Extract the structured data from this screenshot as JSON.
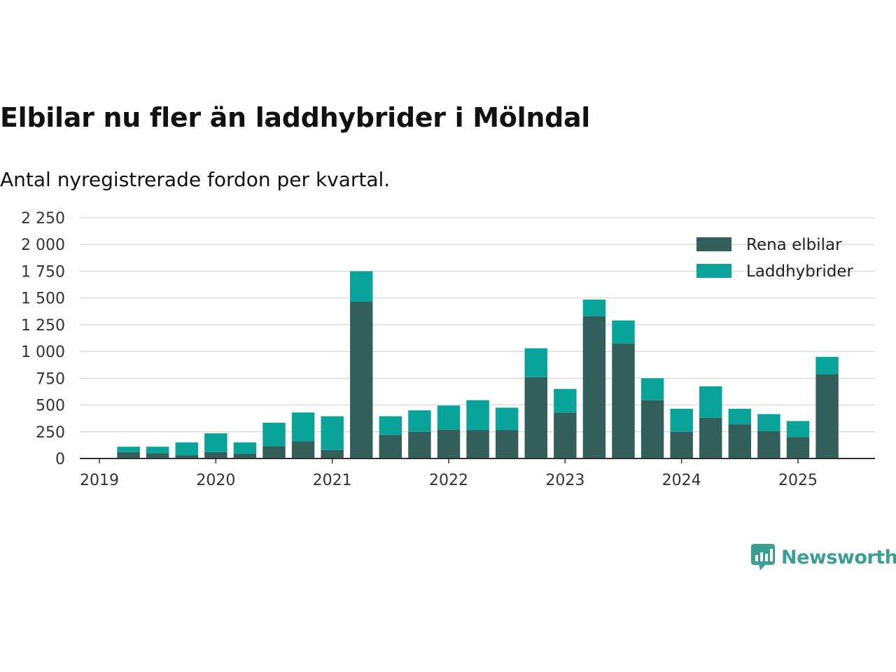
{
  "title": "Elbilar nu fler än laddhybrider i Mölndal",
  "subtitle": "Antal nyregistrerade fordon per kvartal.",
  "brand": {
    "name": "Newsworthy",
    "icon": "newsworthy-logo-icon",
    "color": "#3a9e93"
  },
  "colors": {
    "rena_elbilar": "#335f5a",
    "laddhybrider": "#0aa39a",
    "grid": "#dddddd",
    "axis": "#333333"
  },
  "chart_data": {
    "type": "bar",
    "stacked": true,
    "title": "Elbilar nu fler än laddhybrider i Mölndal",
    "subtitle": "Antal nyregistrerade fordon per kvartal.",
    "xlabel": "",
    "ylabel": "",
    "ylim": [
      0,
      2250
    ],
    "yticks": [
      0,
      250,
      500,
      750,
      1000,
      1250,
      1500,
      1750,
      2000,
      2250
    ],
    "ytick_labels": [
      "0",
      "250",
      "500",
      "750",
      "1 000",
      "1 250",
      "1 500",
      "1 750",
      "2 000",
      "2 250"
    ],
    "xtick_labels": [
      "2019",
      "2020",
      "2021",
      "2022",
      "2023",
      "2024",
      "2025"
    ],
    "grid": true,
    "legend_position": "top-right",
    "categories": [
      "2019 Q2",
      "2019 Q3",
      "2019 Q4",
      "2020 Q1",
      "2020 Q2",
      "2020 Q3",
      "2020 Q4",
      "2021 Q1",
      "2021 Q2",
      "2021 Q3",
      "2021 Q4",
      "2022 Q1",
      "2022 Q2",
      "2022 Q3",
      "2022 Q4",
      "2023 Q1",
      "2023 Q2",
      "2023 Q3",
      "2023 Q4",
      "2024 Q1",
      "2024 Q2",
      "2024 Q3",
      "2024 Q4",
      "2025 Q1",
      "2025 Q2"
    ],
    "series": [
      {
        "name": "Rena elbilar",
        "color": "#335f5a",
        "values": [
          60,
          50,
          30,
          60,
          45,
          115,
          160,
          80,
          1465,
          220,
          250,
          270,
          265,
          265,
          760,
          430,
          1330,
          1075,
          545,
          250,
          380,
          320,
          255,
          200,
          785
        ]
      },
      {
        "name": "Laddhybrider",
        "color": "#0aa39a",
        "values": [
          50,
          60,
          120,
          175,
          105,
          220,
          270,
          315,
          285,
          175,
          200,
          225,
          280,
          210,
          270,
          220,
          155,
          215,
          205,
          215,
          295,
          145,
          160,
          150,
          165
        ]
      }
    ]
  }
}
